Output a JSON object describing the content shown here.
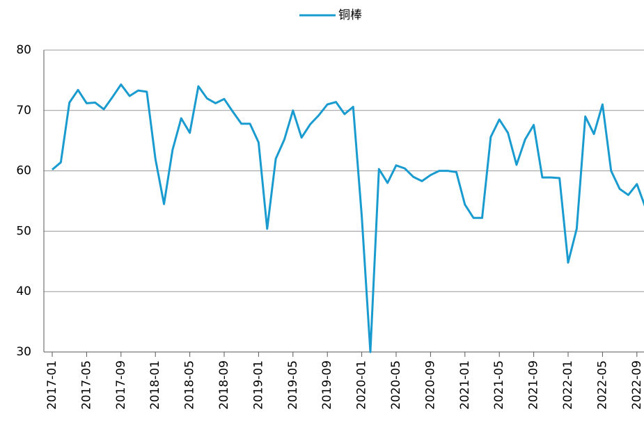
{
  "chart_data": {
    "type": "line",
    "categories": [
      "2017-01",
      null,
      null,
      null,
      "2017-05",
      null,
      null,
      null,
      "2017-09",
      null,
      null,
      null,
      "2018-01",
      null,
      null,
      null,
      "2018-05",
      null,
      null,
      null,
      "2018-09",
      null,
      null,
      null,
      "2019-01",
      null,
      null,
      null,
      "2019-05",
      null,
      null,
      null,
      "2019-09",
      null,
      null,
      null,
      "2020-01",
      null,
      null,
      null,
      "2020-05",
      null,
      null,
      null,
      "2020-09",
      null,
      null,
      null,
      "2021-01",
      null,
      null,
      null,
      "2021-05",
      null,
      null,
      null,
      "2021-09",
      null,
      null,
      null,
      "2022-01",
      null,
      null,
      null,
      "2022-05",
      null,
      null,
      null,
      "2022-09",
      null
    ],
    "series": [
      {
        "name": "铜棒",
        "color": "#1a9bd0",
        "values": [
          60.2,
          61.4,
          71.3,
          73.4,
          71.2,
          71.3,
          70.2,
          72.2,
          74.3,
          72.4,
          73.3,
          73.1,
          62.0,
          54.5,
          63.5,
          68.7,
          66.3,
          74.0,
          72.0,
          71.2,
          71.9,
          69.8,
          67.8,
          67.8,
          64.7,
          50.4,
          62.0,
          65.2,
          70.0,
          65.5,
          67.7,
          69.2,
          71.0,
          71.4,
          69.4,
          70.6,
          52.5,
          30.0,
          60.3,
          58.0,
          60.9,
          60.4,
          59.0,
          58.3,
          59.3,
          60.0,
          60.0,
          59.8,
          54.4,
          52.2,
          52.2,
          65.6,
          68.5,
          66.3,
          61.0,
          65.2,
          67.6,
          58.9,
          58.9,
          58.8,
          44.8,
          50.4,
          69.0,
          66.1,
          71.0,
          60.0,
          57.0,
          56.0,
          57.8,
          53.9
        ]
      }
    ],
    "ylim": [
      30,
      80
    ],
    "yticks": [
      30,
      40,
      50,
      60,
      70,
      80
    ],
    "grid": true,
    "legend": "top"
  }
}
